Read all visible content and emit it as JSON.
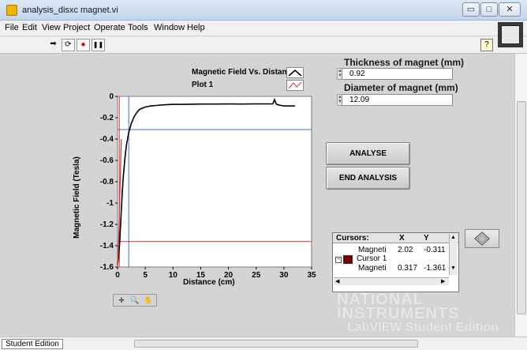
{
  "window": {
    "title": "analysis_disxc magnet.vi",
    "min": "▭",
    "max": "□",
    "close": "✕"
  },
  "menu": [
    "File",
    "Edit",
    "View",
    "Project",
    "Operate",
    "Tools",
    "Window",
    "Help"
  ],
  "toolbar": {
    "run": "➡",
    "run_continuous": "⟳",
    "abort": "●",
    "pause": "❚❚",
    "help": "?"
  },
  "legend": [
    {
      "label": "Magnetic Field Vs. Distance",
      "color": "#000000"
    },
    {
      "label": "Plot 1",
      "color": "#e03030"
    }
  ],
  "controls": {
    "thickness_label": "Thickness of magnet (mm)",
    "thickness_value": "0.92",
    "diameter_label": "Diameter of magnet (mm)",
    "diameter_value": "12.09"
  },
  "buttons": {
    "analyse": "ANALYSE",
    "end_analysis": "END ANALYSIS"
  },
  "cursor_legend": {
    "headers": [
      "Cursors:",
      "X",
      "Y"
    ],
    "rows": [
      {
        "name": "Magneti",
        "x": "2.02",
        "y": "-0.311"
      },
      {
        "group": "Cursor 1"
      },
      {
        "name": "Magneti",
        "x": "0.317",
        "y": "-1.361"
      }
    ],
    "cursor1_color": "#7a0000"
  },
  "chart_data": {
    "type": "line",
    "title": "",
    "xlabel": "Distance (cm)",
    "ylabel": "Magnetic Field (Tesla)",
    "xlim": [
      0,
      35
    ],
    "ylim": [
      -1.6,
      0
    ],
    "xticks": [
      0,
      5,
      10,
      15,
      20,
      25,
      30,
      35
    ],
    "yticks": [
      0,
      -0.2,
      -0.4,
      -0.6,
      -0.8,
      -1,
      -1.2,
      -1.4,
      -1.6
    ],
    "ytick_labels": [
      "0",
      "-0.2",
      "-0.4",
      "-0.6",
      "-0.8",
      "-1",
      "-1.2",
      "-1.4",
      "-1.6"
    ],
    "series": [
      {
        "color": "#000000",
        "x": [
          0,
          0.2,
          0.4,
          0.6,
          0.8,
          1.0,
          1.3,
          1.6,
          2.0,
          2.5,
          3.0,
          3.5,
          4.0,
          5.0,
          6.0,
          7.0,
          8.0,
          10,
          12,
          15,
          18,
          20,
          22,
          25,
          27,
          28,
          28.3,
          28.6,
          29,
          30,
          31,
          32
        ],
        "y": [
          -1.58,
          -1.5,
          -1.36,
          -1.15,
          -0.95,
          -0.78,
          -0.6,
          -0.46,
          -0.34,
          -0.25,
          -0.19,
          -0.15,
          -0.12,
          -0.1,
          -0.09,
          -0.085,
          -0.08,
          -0.075,
          -0.075,
          -0.072,
          -0.072,
          -0.07,
          -0.072,
          -0.07,
          -0.07,
          -0.07,
          -0.03,
          -0.07,
          -0.08,
          -0.09,
          -0.09,
          -0.09
        ]
      },
      {
        "color": "#e03030",
        "x": [
          0,
          0.1,
          0.2,
          0.3,
          0.4,
          0.5,
          0.6,
          0.7
        ],
        "y": [
          -1.6,
          -1.5,
          -1.35,
          -1.15,
          -0.95,
          -0.75,
          -0.55,
          -0.4
        ]
      }
    ],
    "cursors": [
      {
        "x": 2.02,
        "y": -0.311,
        "color": "#3a6ee0"
      },
      {
        "x": 0.317,
        "y": -1.361,
        "color": "#e03030"
      }
    ]
  },
  "graph_palette": [
    "✛",
    "🔍",
    "✋"
  ],
  "statusbar": {
    "edition_label": "Student Edition"
  },
  "watermark": {
    "line1": "NATIONAL",
    "line2": "INSTRUMENTS",
    "line3": "LabVIEW Student Edition"
  }
}
